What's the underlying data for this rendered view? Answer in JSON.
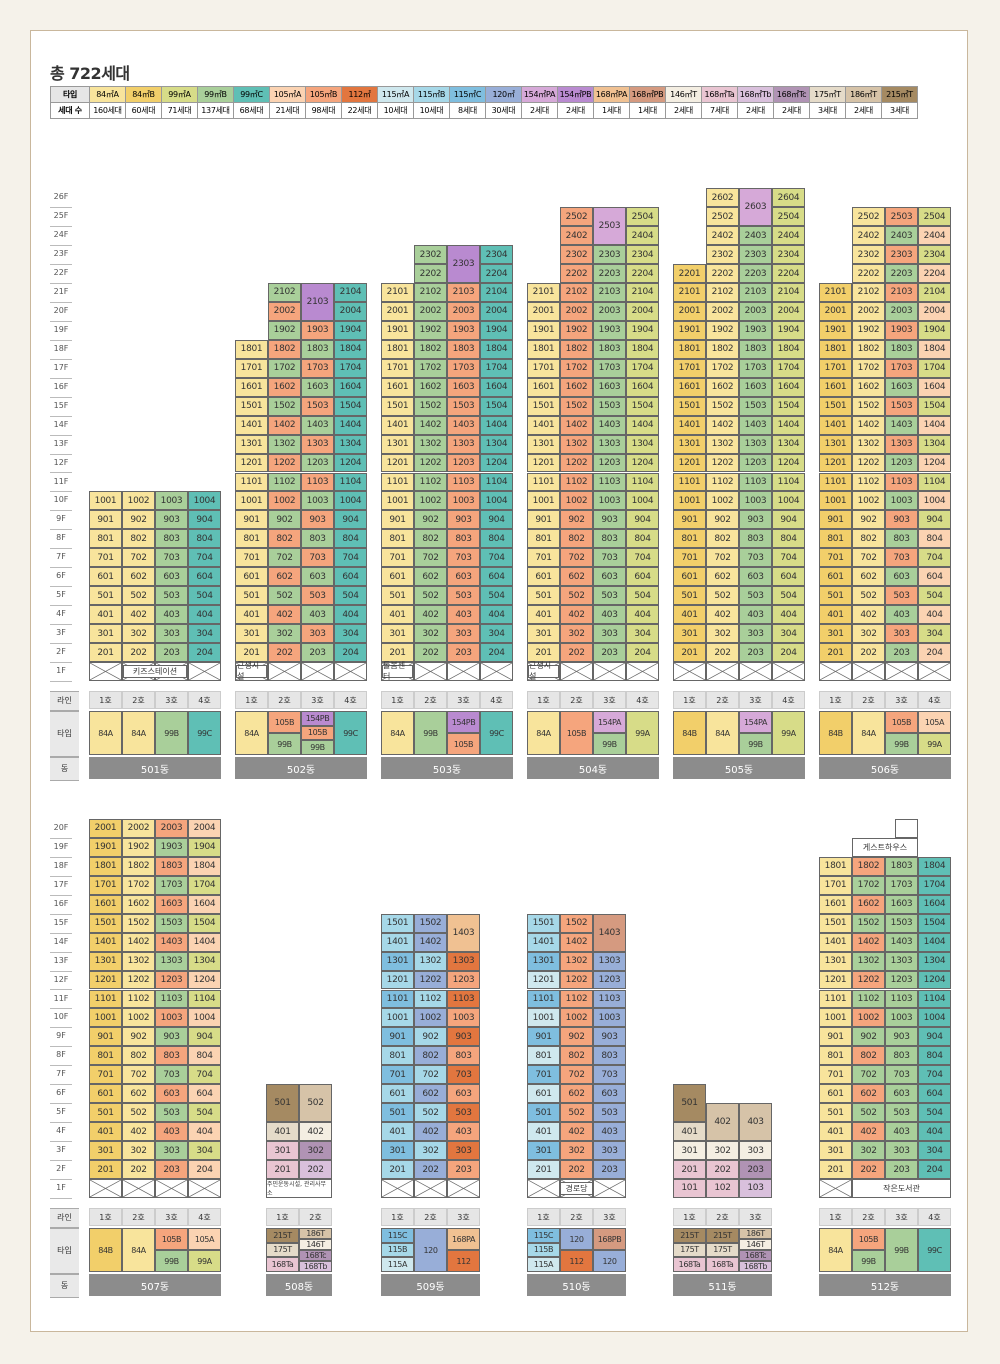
{
  "title": "총 722세대",
  "legend": {
    "type_label": "타입",
    "count_label": "세대 수",
    "items": [
      {
        "k": "A84",
        "name": "84㎡A",
        "count": "160세대",
        "color": "#f8e49c"
      },
      {
        "k": "B84",
        "name": "84㎡B",
        "count": "60세대",
        "color": "#f2cf6a"
      },
      {
        "k": "A99",
        "name": "99㎡A",
        "count": "71세대",
        "color": "#d7dc88"
      },
      {
        "k": "B99",
        "name": "99㎡B",
        "count": "137세대",
        "color": "#a9cf9a"
      },
      {
        "k": "C99",
        "name": "99㎡C",
        "count": "68세대",
        "color": "#5fbfb5"
      },
      {
        "k": "A105",
        "name": "105㎡A",
        "count": "21세대",
        "color": "#fbd3b2"
      },
      {
        "k": "B105",
        "name": "105㎡B",
        "count": "98세대",
        "color": "#f5a57d"
      },
      {
        "k": "T112",
        "name": "112㎡",
        "count": "22세대",
        "color": "#e2763f"
      },
      {
        "k": "A115",
        "name": "115㎡A",
        "count": "10세대",
        "color": "#cfe8ee"
      },
      {
        "k": "B115",
        "name": "115㎡B",
        "count": "10세대",
        "color": "#a6d8e8"
      },
      {
        "k": "C115",
        "name": "115㎡C",
        "count": "8세대",
        "color": "#7fbedf"
      },
      {
        "k": "T120",
        "name": "120㎡",
        "count": "30세대",
        "color": "#98aed8"
      },
      {
        "k": "PA154",
        "name": "154㎡PA",
        "count": "2세대",
        "color": "#d6a9d8"
      },
      {
        "k": "PB154",
        "name": "154㎡PB",
        "count": "2세대",
        "color": "#b98ad0"
      },
      {
        "k": "PA168",
        "name": "168㎡PA",
        "count": "1세대",
        "color": "#f0c192"
      },
      {
        "k": "PB168",
        "name": "168㎡PB",
        "count": "1세대",
        "color": "#d59a80"
      },
      {
        "k": "T146",
        "name": "146㎡T",
        "count": "2세대",
        "color": "#f4eee2"
      },
      {
        "k": "Ta168",
        "name": "168㎡Ta",
        "count": "7세대",
        "color": "#e9c5d2"
      },
      {
        "k": "Tb168",
        "name": "168㎡Tb",
        "count": "2세대",
        "color": "#d9c0dc"
      },
      {
        "k": "Tc168",
        "name": "168㎡Tc",
        "count": "2세대",
        "color": "#b093b4"
      },
      {
        "k": "T175",
        "name": "175㎡T",
        "count": "3세대",
        "color": "#e5dbc9"
      },
      {
        "k": "T186",
        "name": "186㎡T",
        "count": "2세대",
        "color": "#d6c3a8"
      },
      {
        "k": "T215",
        "name": "215㎡T",
        "count": "3세대",
        "color": "#a58a62"
      }
    ]
  },
  "row_labels": {
    "line": "라인",
    "type": "타입",
    "dong": "동"
  },
  "buildings": [
    {
      "dong": "501동",
      "lines": [
        "1호",
        "2호",
        "3호",
        "4호"
      ],
      "top": 10,
      "types": [
        [
          "84A"
        ],
        [
          "84A"
        ],
        [
          "99B"
        ],
        [
          "99C"
        ]
      ],
      "cols": [
        "A84",
        "A84",
        "B99",
        "C99"
      ],
      "notes": {
        "1": {
          "text": "키즈스테이션",
          "span": [
            1,
            2
          ]
        }
      }
    },
    {
      "dong": "502동",
      "lines": [
        "1호",
        "2호",
        "3호",
        "4호"
      ],
      "top": 21,
      "floors_start": {
        "0": 2,
        "1": 2,
        "2": 2,
        "3": 2
      },
      "col_tops": [
        18,
        21,
        21,
        21
      ],
      "types": [
        [
          "84A"
        ],
        [
          "105B",
          "99B"
        ],
        [
          "154PB",
          "105B",
          "99B"
        ],
        [
          "99C"
        ]
      ],
      "notes": {
        "1": {
          "text": "근생시설",
          "span": [
            1
          ]
        }
      }
    },
    {
      "dong": "503동",
      "lines": [
        "1호",
        "2호",
        "3호",
        "4호"
      ],
      "top": 23,
      "col_tops": [
        21,
        23,
        23,
        23
      ],
      "types": [
        [
          "84A"
        ],
        [
          "99B"
        ],
        [
          "154PB",
          "105B"
        ],
        [
          "99C"
        ]
      ],
      "notes": {
        "1": {
          "text": "돌봄센터",
          "span": [
            1
          ]
        }
      }
    },
    {
      "dong": "504동",
      "lines": [
        "1호",
        "2호",
        "3호",
        "4호"
      ],
      "top": 25,
      "col_tops": [
        21,
        25,
        25,
        25
      ],
      "types": [
        [
          "84A"
        ],
        [
          "105B"
        ],
        [
          "154PA",
          "99B"
        ],
        [
          "99A"
        ]
      ],
      "notes": {
        "1": {
          "text": "근생시설",
          "span": [
            1
          ]
        }
      }
    },
    {
      "dong": "505동",
      "lines": [
        "1호",
        "2호",
        "3호",
        "4호"
      ],
      "top": 26,
      "col_tops": [
        22,
        26,
        26,
        26
      ],
      "types": [
        [
          "84B"
        ],
        [
          "84A"
        ],
        [
          "154PA",
          "99B"
        ],
        [
          "99A"
        ]
      ]
    },
    {
      "dong": "506동",
      "lines": [
        "1호",
        "2호",
        "3호",
        "4호"
      ],
      "top": 25,
      "col_tops": [
        21,
        25,
        25,
        25
      ],
      "types": [
        [
          "84B"
        ],
        [
          "84A"
        ],
        [
          "105B",
          "99B"
        ],
        [
          "105A",
          "99A"
        ]
      ]
    },
    {
      "dong": "507동",
      "lines": [
        "1호",
        "2호",
        "3호",
        "4호"
      ],
      "types": [
        [
          "84B"
        ],
        [
          "84A"
        ],
        [
          "105B",
          "99B"
        ],
        [
          "105A",
          "99A"
        ]
      ]
    },
    {
      "dong": "508동",
      "lines": [
        "1호",
        "2호"
      ],
      "types": [
        [
          "215T",
          "175T",
          "168Ta"
        ],
        [
          "186T",
          "146T",
          "168Tc",
          "168Tb"
        ]
      ],
      "notes": {
        "1": {
          "text": "주민운동시설, 관리사무소"
        }
      }
    },
    {
      "dong": "509동",
      "lines": [
        "1호",
        "2호",
        "3호"
      ],
      "types": [
        [
          "115C",
          "115B",
          "115A"
        ],
        [
          "120"
        ],
        [
          "168PA",
          "112"
        ]
      ]
    },
    {
      "dong": "510동",
      "lines": [
        "1호",
        "2호",
        "3호"
      ],
      "types": [
        [
          "115C",
          "115B",
          "115A"
        ],
        [
          "120",
          "112"
        ],
        [
          "168PB",
          "120"
        ]
      ],
      "notes": {
        "1": {
          "text": "경로당"
        }
      }
    },
    {
      "dong": "511동",
      "lines": [
        "1호",
        "2호",
        "3호"
      ],
      "types": [
        [
          "215T",
          "175T",
          "168Ta"
        ],
        [
          "215T",
          "175T",
          "168Ta"
        ],
        [
          "186T",
          "146T",
          "168Tc",
          "168Tb"
        ]
      ]
    },
    {
      "dong": "512동",
      "lines": [
        "1호",
        "2호",
        "3호",
        "4호"
      ],
      "types": [
        [
          "84A"
        ],
        [
          "105B",
          "99B"
        ],
        [
          "99B"
        ],
        [
          "99C"
        ]
      ],
      "notes": {
        "1": {
          "text": "작은도서관"
        },
        "top": {
          "text": "게스트하우스"
        }
      }
    }
  ],
  "floor_labels_top": [
    "26F",
    "25F",
    "24F",
    "23F",
    "22F",
    "21F",
    "20F",
    "19F",
    "18F",
    "17F",
    "16F",
    "15F",
    "14F",
    "13F",
    "12F",
    "11F",
    "10F",
    "9F",
    "8F",
    "7F",
    "6F",
    "5F",
    "4F",
    "3F",
    "2F",
    "1F"
  ],
  "floor_labels_bottom": [
    "20F",
    "19F",
    "18F",
    "17F",
    "16F",
    "15F",
    "14F",
    "13F",
    "12F",
    "11F",
    "10F",
    "9F",
    "8F",
    "7F",
    "6F",
    "5F",
    "4F",
    "3F",
    "2F",
    "1F"
  ]
}
